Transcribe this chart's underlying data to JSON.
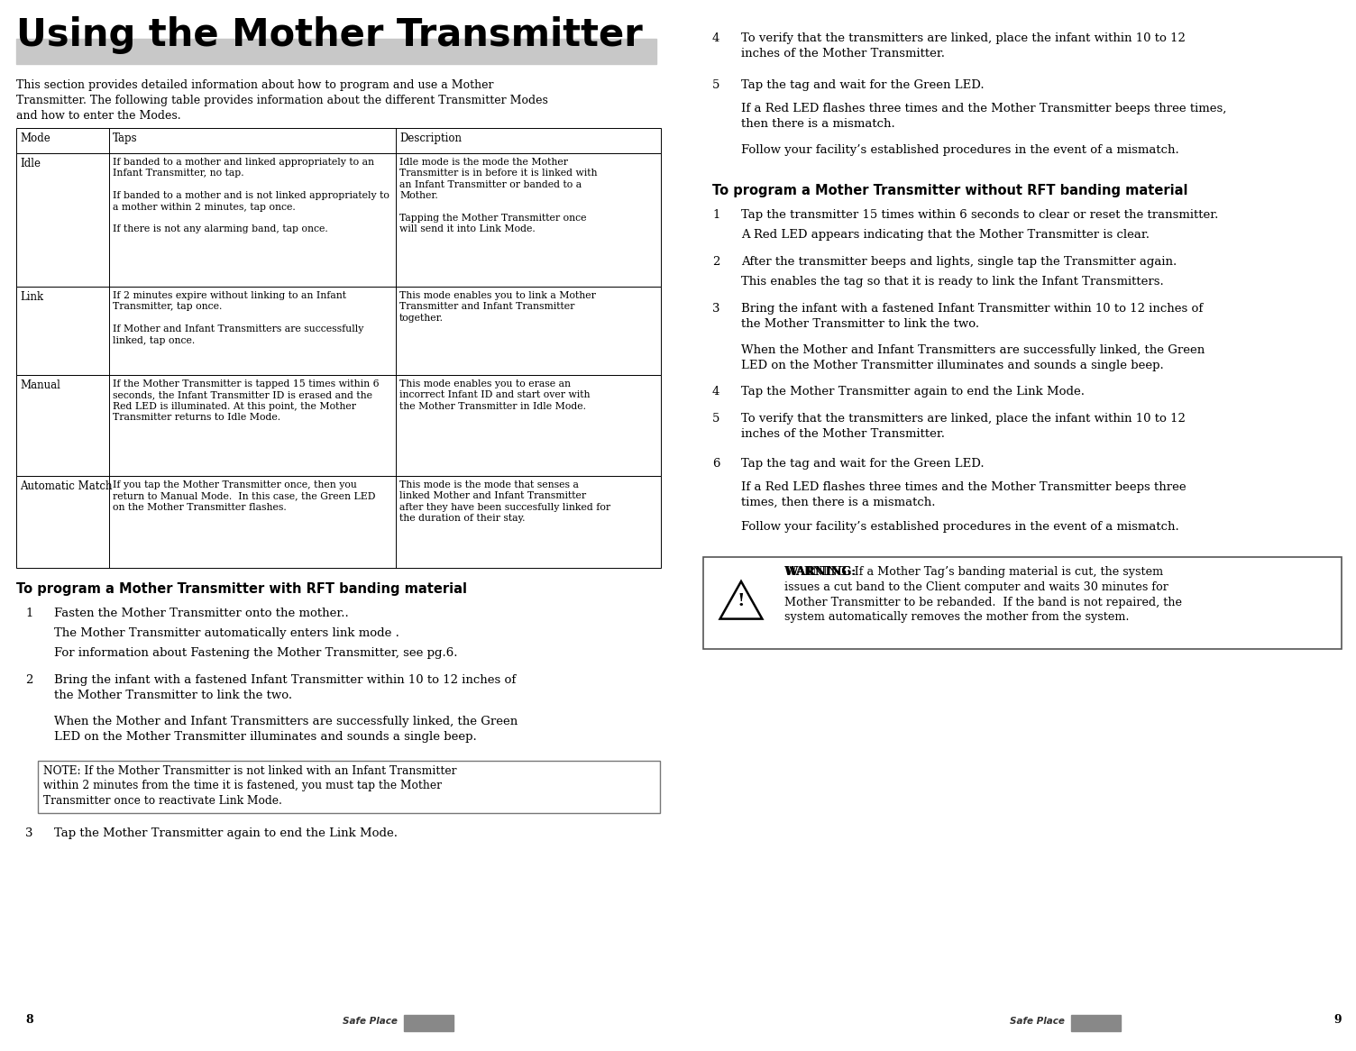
{
  "title": "Using the Mother Transmitter",
  "page_bg": "#ffffff",
  "gray_bar_color": "#c8c8c8",
  "intro_text": "This section provides detailed information about how to program and use a Mother\nTransmitter. The following table provides information about the different Transmitter Modes\nand how to enter the Modes.",
  "table_rows": [
    {
      "mode": "Idle",
      "taps": "If banded to a mother and linked appropriately to an\nInfant Transmitter, no tap.\n\nIf banded to a mother and is not linked appropriately to\na mother within 2 minutes, tap once.\n\nIf there is not any alarming band, tap once.",
      "desc": "Idle mode is the mode the Mother\nTransmitter is in before it is linked with\nan Infant Transmitter or banded to a\nMother.\n\nTapping the Mother Transmitter once\nwill send it into Link Mode."
    },
    {
      "mode": "Link",
      "taps": "If 2 minutes expire without linking to an Infant\nTransmitter, tap once.\n\nIf Mother and Infant Transmitters are successfully\nlinked, tap once.",
      "desc": "This mode enables you to link a Mother\nTransmitter and Infant Transmitter\ntogether."
    },
    {
      "mode": "Manual",
      "taps": "If the Mother Transmitter is tapped 15 times within 6\nseconds, the Infant Transmitter ID is erased and the\nRed LED is illuminated. At this point, the Mother\nTransmitter returns to Idle Mode.",
      "desc": "This mode enables you to erase an\nincorrect Infant ID and start over with\nthe Mother Transmitter in Idle Mode."
    },
    {
      "mode": "Automatic Match",
      "taps": "If you tap the Mother Transmitter once, then you\nreturn to Manual Mode.  In this case, the Green LED\non the Mother Transmitter flashes.",
      "desc": "This mode is the mode that senses a\nlinked Mother and Infant Transmitter\nafter they have been succesfully linked for\nthe duration of their stay."
    }
  ],
  "left_section_title": "To program a Mother Transmitter with RFT banding material",
  "right_section2_title": "To program a Mother Transmitter without RFT banding material",
  "note_box_text": "NOTE: If the Mother Transmitter is not linked with an Infant Transmitter\nwithin 2 minutes from the time it is fastened, you must tap the Mother\nTransmitter once to reactivate Link Mode.",
  "warning_text_bold": "WARNING:",
  "warning_text_rest": " If a Mother Tag’s banding material is cut, the system\nissues a cut band to the Client computer and waits 30 minutes for\nMother Transmitter to be rebanded.  If the band is not repaired, the\nsystem automatically removes the mother from the system.",
  "page_left": "8",
  "page_right": "9"
}
